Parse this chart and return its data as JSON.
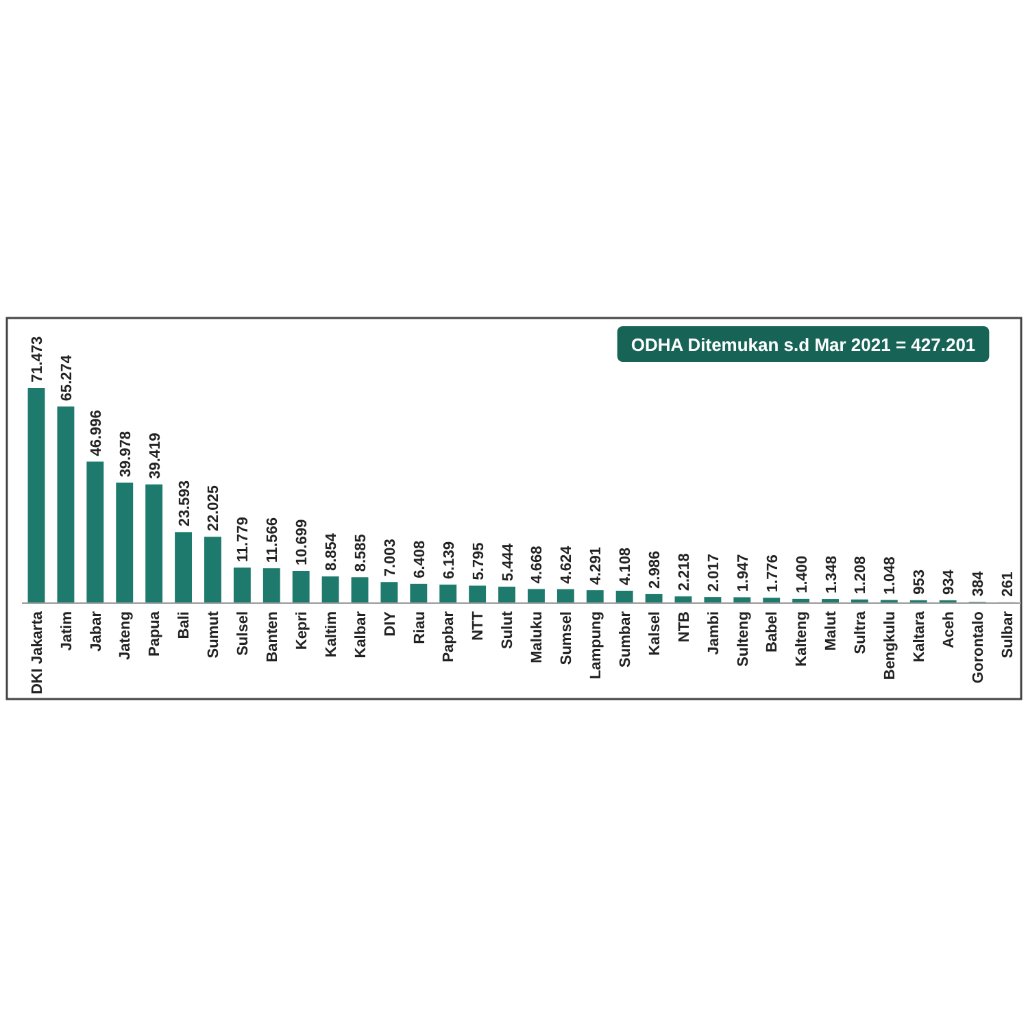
{
  "chart_data": {
    "type": "bar",
    "title": "ODHA Ditemukan s.d Mar 2021 = 427.201",
    "categories": [
      "DKI Jakarta",
      "Jatim",
      "Jabar",
      "Jateng",
      "Papua",
      "Bali",
      "Sumut",
      "Sulsel",
      "Banten",
      "Kepri",
      "Kaltim",
      "Kalbar",
      "DIY",
      "Riau",
      "Papbar",
      "NTT",
      "Sulut",
      "Maluku",
      "Sumsel",
      "Lampung",
      "Sumbar",
      "Kalsel",
      "NTB",
      "Jambi",
      "Sulteng",
      "Babel",
      "Kalteng",
      "Malut",
      "Sultra",
      "Bengkulu",
      "Kaltara",
      "Aceh",
      "Gorontalo",
      "Sulbar"
    ],
    "values": [
      71473,
      65274,
      46996,
      39978,
      39419,
      23593,
      22025,
      11779,
      11566,
      10699,
      8854,
      8585,
      7003,
      6408,
      6139,
      5795,
      5444,
      4668,
      4624,
      4291,
      4108,
      2986,
      2218,
      2017,
      1947,
      1776,
      1400,
      1348,
      1208,
      1048,
      953,
      934,
      384,
      261
    ],
    "value_labels": [
      "71.473",
      "65.274",
      "46.996",
      "39.978",
      "39.419",
      "23.593",
      "22.025",
      "11.779",
      "11.566",
      "10.699",
      "8.854",
      "8.585",
      "7.003",
      "6.408",
      "6.139",
      "5.795",
      "5.444",
      "4.668",
      "4.624",
      "4.291",
      "4.108",
      "2.986",
      "2.218",
      "2.017",
      "1.947",
      "1.776",
      "1.400",
      "1.348",
      "1.208",
      "1.048",
      "953",
      "934",
      "384",
      "261"
    ],
    "color": "#1d7a6c"
  }
}
